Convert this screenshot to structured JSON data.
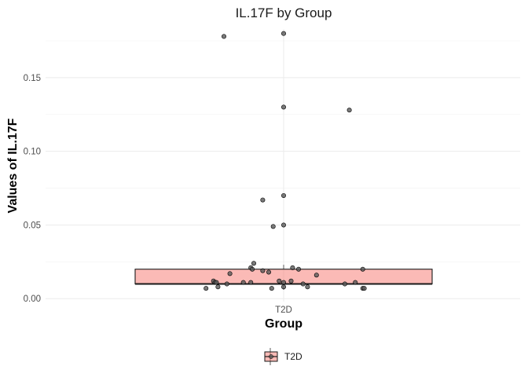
{
  "chart_data": {
    "type": "boxplot",
    "title": "IL.17F by Group",
    "xlabel": "Group",
    "ylabel": "Values of IL.17F",
    "categories": [
      "T2D"
    ],
    "ylim": [
      -0.002,
      0.183
    ],
    "yticks": [
      0.0,
      0.05,
      0.1,
      0.15
    ],
    "ytick_labels": [
      "0.00",
      "0.05",
      "0.10",
      "0.15"
    ],
    "grid": true,
    "legend": {
      "position": "bottom",
      "entries": [
        "T2D"
      ]
    },
    "colors": {
      "box_fill": "#F8766D",
      "box_alpha": 0.5,
      "point": "#595959"
    },
    "box": {
      "category": "T2D",
      "q1": 0.01,
      "median": 0.01,
      "q3": 0.02,
      "whisker_low": 0.006,
      "whisker_high": 0.023
    },
    "points": [
      {
        "x": -0.4,
        "y": 0.178
      },
      {
        "x": 0.0,
        "y": 0.18
      },
      {
        "x": 0.0,
        "y": 0.13
      },
      {
        "x": 0.44,
        "y": 0.128
      },
      {
        "x": 0.0,
        "y": 0.07
      },
      {
        "x": -0.14,
        "y": 0.067
      },
      {
        "x": 0.0,
        "y": 0.05
      },
      {
        "x": -0.07,
        "y": 0.049
      },
      {
        "x": -0.22,
        "y": 0.021
      },
      {
        "x": -0.21,
        "y": 0.02
      },
      {
        "x": -0.2,
        "y": 0.024
      },
      {
        "x": -0.14,
        "y": 0.019
      },
      {
        "x": -0.1,
        "y": 0.018
      },
      {
        "x": 0.06,
        "y": 0.021
      },
      {
        "x": 0.1,
        "y": 0.02
      },
      {
        "x": 0.53,
        "y": 0.02
      },
      {
        "x": -0.36,
        "y": 0.017
      },
      {
        "x": 0.22,
        "y": 0.016
      },
      {
        "x": -0.47,
        "y": 0.012
      },
      {
        "x": -0.46,
        "y": 0.011
      },
      {
        "x": -0.45,
        "y": 0.011
      },
      {
        "x": -0.27,
        "y": 0.011
      },
      {
        "x": -0.22,
        "y": 0.011
      },
      {
        "x": -0.03,
        "y": 0.012
      },
      {
        "x": 0.0,
        "y": 0.011
      },
      {
        "x": 0.05,
        "y": 0.012
      },
      {
        "x": 0.13,
        "y": 0.01
      },
      {
        "x": 0.41,
        "y": 0.01
      },
      {
        "x": 0.48,
        "y": 0.011
      },
      {
        "x": -0.38,
        "y": 0.01
      },
      {
        "x": -0.44,
        "y": 0.008
      },
      {
        "x": 0.0,
        "y": 0.008
      },
      {
        "x": 0.16,
        "y": 0.008
      },
      {
        "x": -0.52,
        "y": 0.007
      },
      {
        "x": -0.08,
        "y": 0.007
      },
      {
        "x": 0.53,
        "y": 0.007
      },
      {
        "x": 0.54,
        "y": 0.007
      }
    ]
  }
}
